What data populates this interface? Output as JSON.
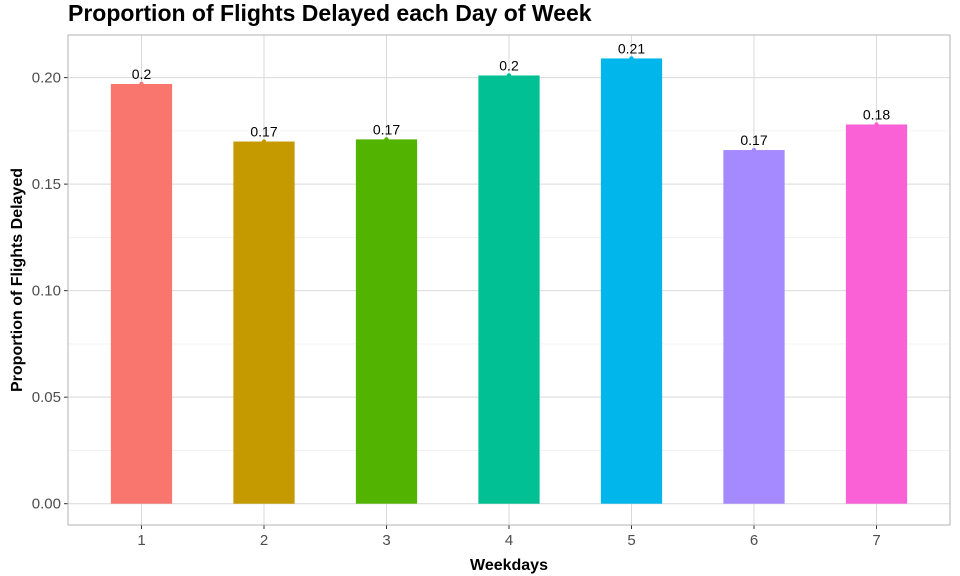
{
  "chart_data": {
    "type": "bar",
    "title": "Proportion of Flights Delayed each Day of Week",
    "xlabel": "Weekdays",
    "ylabel": "Proportion of Flights Delayed",
    "categories": [
      "1",
      "2",
      "3",
      "4",
      "5",
      "6",
      "7"
    ],
    "values": [
      0.197,
      0.17,
      0.171,
      0.201,
      0.209,
      0.166,
      0.178
    ],
    "data_labels": [
      "0.2",
      "0.17",
      "0.17",
      "0.2",
      "0.21",
      "0.17",
      "0.18"
    ],
    "colors": [
      "#F8766D",
      "#C49A00",
      "#53B400",
      "#00C094",
      "#00B6EB",
      "#A58AFF",
      "#FB61D7"
    ],
    "ylim": [
      -0.01,
      0.22
    ],
    "yticks": [
      0.0,
      0.05,
      0.1,
      0.15,
      0.2
    ],
    "ytick_labels": [
      "0.00",
      "0.05",
      "0.10",
      "0.15",
      "0.20"
    ],
    "grid": true,
    "legend": "none"
  }
}
